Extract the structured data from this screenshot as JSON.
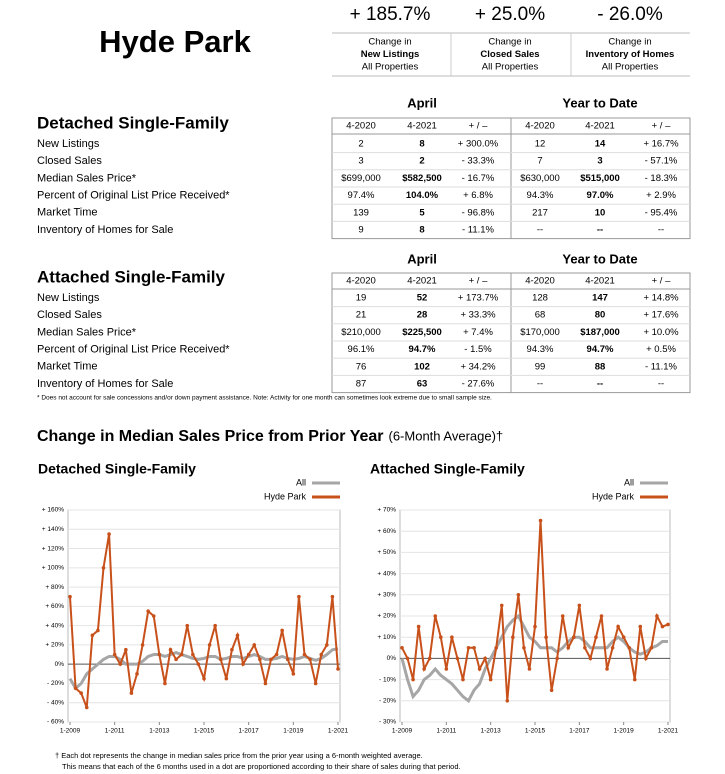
{
  "header": {
    "title": "Hyde Park",
    "stats": [
      {
        "value": "+ 185.7%",
        "lines": [
          "Change in",
          "New Listings",
          "All Properties"
        ]
      },
      {
        "value": "+ 25.0%",
        "lines": [
          "Change in",
          "Closed Sales",
          "All Properties"
        ]
      },
      {
        "value": "- 26.0%",
        "lines": [
          "Change in",
          "Inventory of Homes",
          "All Properties"
        ]
      }
    ]
  },
  "tables": [
    {
      "title": "Detached Single-Family",
      "groups": [
        "April",
        "Year to Date"
      ],
      "columns": [
        "4-2020",
        "4-2021",
        "+ / –",
        "4-2020",
        "4-2021",
        "+ / –"
      ],
      "rows": [
        {
          "label": "New Listings",
          "cells": [
            "2",
            "8",
            "+ 300.0%",
            "12",
            "14",
            "+ 16.7%"
          ]
        },
        {
          "label": "Closed Sales",
          "cells": [
            "3",
            "2",
            "- 33.3%",
            "7",
            "3",
            "- 57.1%"
          ]
        },
        {
          "label": "Median Sales Price*",
          "cells": [
            "$699,000",
            "$582,500",
            "- 16.7%",
            "$630,000",
            "$515,000",
            "- 18.3%"
          ]
        },
        {
          "label": "Percent of Original List Price Received*",
          "cells": [
            "97.4%",
            "104.0%",
            "+ 6.8%",
            "94.3%",
            "97.0%",
            "+ 2.9%"
          ]
        },
        {
          "label": "Market Time",
          "cells": [
            "139",
            "5",
            "- 96.8%",
            "217",
            "10",
            "- 95.4%"
          ]
        },
        {
          "label": "Inventory of Homes for Sale",
          "cells": [
            "9",
            "8",
            "- 11.1%",
            "--",
            "--",
            "--"
          ]
        }
      ]
    },
    {
      "title": "Attached Single-Family",
      "groups": [
        "April",
        "Year to Date"
      ],
      "columns": [
        "4-2020",
        "4-2021",
        "+ / –",
        "4-2020",
        "4-2021",
        "+ / –"
      ],
      "rows": [
        {
          "label": "New Listings",
          "cells": [
            "19",
            "52",
            "+ 173.7%",
            "128",
            "147",
            "+ 14.8%"
          ]
        },
        {
          "label": "Closed Sales",
          "cells": [
            "21",
            "28",
            "+ 33.3%",
            "68",
            "80",
            "+ 17.6%"
          ]
        },
        {
          "label": "Median Sales Price*",
          "cells": [
            "$210,000",
            "$225,500",
            "+ 7.4%",
            "$170,000",
            "$187,000",
            "+ 10.0%"
          ]
        },
        {
          "label": "Percent of Original List Price Received*",
          "cells": [
            "96.1%",
            "94.7%",
            "- 1.5%",
            "94.3%",
            "94.7%",
            "+ 0.5%"
          ]
        },
        {
          "label": "Market Time",
          "cells": [
            "76",
            "102",
            "+ 34.2%",
            "99",
            "88",
            "- 11.1%"
          ]
        },
        {
          "label": "Inventory of Homes for Sale",
          "cells": [
            "87",
            "63",
            "- 27.6%",
            "--",
            "--",
            "--"
          ]
        }
      ]
    }
  ],
  "table_note": "* Does not account for sale concessions and/or down payment assistance. Note: Activity for one month can sometimes look extreme due to small sample size.",
  "section_title": "Change in Median Sales Price from Prior Year",
  "section_subtitle": "(6-Month Average)†",
  "chart_data": [
    {
      "type": "line",
      "title": "Detached Single-Family",
      "x": [
        "1-2009",
        "4-2009",
        "7-2009",
        "10-2009",
        "1-2010",
        "4-2010",
        "7-2010",
        "10-2010",
        "1-2011",
        "4-2011",
        "7-2011",
        "10-2011",
        "1-2012",
        "4-2012",
        "7-2012",
        "10-2012",
        "1-2013",
        "4-2013",
        "7-2013",
        "10-2013",
        "1-2014",
        "4-2014",
        "7-2014",
        "10-2014",
        "1-2015",
        "4-2015",
        "7-2015",
        "10-2015",
        "1-2016",
        "4-2016",
        "7-2016",
        "10-2016",
        "1-2017",
        "4-2017",
        "7-2017",
        "10-2017",
        "1-2018",
        "4-2018",
        "7-2018",
        "10-2018",
        "1-2019",
        "4-2019",
        "7-2019",
        "10-2019",
        "1-2020",
        "4-2020",
        "7-2020",
        "10-2020",
        "1-2021"
      ],
      "xticks": [
        "1-2009",
        "1-2011",
        "1-2013",
        "1-2015",
        "1-2017",
        "1-2019",
        "1-2021"
      ],
      "ylim": [
        -60,
        160
      ],
      "yticks": [
        {
          "value": -60,
          "label": "- 60%"
        },
        {
          "value": -40,
          "label": "- 40%"
        },
        {
          "value": -20,
          "label": "- 20%"
        },
        {
          "value": 0,
          "label": "0%"
        },
        {
          "value": 20,
          "label": "+ 20%"
        },
        {
          "value": 40,
          "label": "+ 40%"
        },
        {
          "value": 60,
          "label": "+ 60%"
        },
        {
          "value": 80,
          "label": "+ 80%"
        },
        {
          "value": 100,
          "label": "+ 100%"
        },
        {
          "value": 120,
          "label": "+ 120%"
        },
        {
          "value": 140,
          "label": "+ 140%"
        },
        {
          "value": 160,
          "label": "+ 160%"
        }
      ],
      "series": [
        {
          "name": "All",
          "color": "#a6a6a6",
          "values": [
            -15,
            -25,
            -20,
            -10,
            -5,
            0,
            5,
            8,
            8,
            5,
            0,
            0,
            0,
            3,
            8,
            10,
            10,
            8,
            10,
            12,
            10,
            8,
            6,
            5,
            6,
            8,
            8,
            5,
            6,
            8,
            8,
            6,
            8,
            10,
            8,
            5,
            5,
            6,
            8,
            6,
            5,
            6,
            8,
            6,
            4,
            6,
            10,
            15,
            16
          ]
        },
        {
          "name": "Hyde Park",
          "color": "#c8511b",
          "values": [
            70,
            -25,
            -30,
            -45,
            30,
            35,
            100,
            135,
            10,
            0,
            15,
            -30,
            -10,
            20,
            55,
            50,
            10,
            -20,
            15,
            5,
            10,
            40,
            10,
            0,
            -15,
            20,
            40,
            5,
            -15,
            15,
            30,
            0,
            10,
            20,
            5,
            -20,
            5,
            10,
            35,
            5,
            -10,
            70,
            10,
            5,
            -20,
            10,
            20,
            70,
            -5
          ]
        }
      ]
    },
    {
      "type": "line",
      "title": "Attached Single-Family",
      "x": [
        "1-2009",
        "4-2009",
        "7-2009",
        "10-2009",
        "1-2010",
        "4-2010",
        "7-2010",
        "10-2010",
        "1-2011",
        "4-2011",
        "7-2011",
        "10-2011",
        "1-2012",
        "4-2012",
        "7-2012",
        "10-2012",
        "1-2013",
        "4-2013",
        "7-2013",
        "10-2013",
        "1-2014",
        "4-2014",
        "7-2014",
        "10-2014",
        "1-2015",
        "4-2015",
        "7-2015",
        "10-2015",
        "1-2016",
        "4-2016",
        "7-2016",
        "10-2016",
        "1-2017",
        "4-2017",
        "7-2017",
        "10-2017",
        "1-2018",
        "4-2018",
        "7-2018",
        "10-2018",
        "1-2019",
        "4-2019",
        "7-2019",
        "10-2019",
        "1-2020",
        "4-2020",
        "7-2020",
        "10-2020",
        "1-2021"
      ],
      "xticks": [
        "1-2009",
        "1-2011",
        "1-2013",
        "1-2015",
        "1-2017",
        "1-2019",
        "1-2021"
      ],
      "ylim": [
        -30,
        70
      ],
      "yticks": [
        {
          "value": -30,
          "label": "- 30%"
        },
        {
          "value": -20,
          "label": "- 20%"
        },
        {
          "value": -10,
          "label": "- 10%"
        },
        {
          "value": 0,
          "label": "0%"
        },
        {
          "value": 10,
          "label": "+ 10%"
        },
        {
          "value": 20,
          "label": "+ 20%"
        },
        {
          "value": 30,
          "label": "+ 30%"
        },
        {
          "value": 40,
          "label": "+ 40%"
        },
        {
          "value": 50,
          "label": "+ 50%"
        },
        {
          "value": 60,
          "label": "+ 60%"
        },
        {
          "value": 70,
          "label": "+ 70%"
        }
      ],
      "series": [
        {
          "name": "All",
          "color": "#a6a6a6",
          "values": [
            0,
            -10,
            -18,
            -15,
            -10,
            -8,
            -5,
            -8,
            -10,
            -12,
            -15,
            -18,
            -20,
            -15,
            -12,
            -5,
            0,
            5,
            10,
            15,
            18,
            20,
            15,
            10,
            8,
            5,
            5,
            5,
            3,
            5,
            8,
            10,
            10,
            8,
            5,
            5,
            5,
            5,
            8,
            10,
            8,
            5,
            3,
            2,
            3,
            5,
            6,
            8,
            8
          ]
        },
        {
          "name": "Hyde Park",
          "color": "#c8511b",
          "values": [
            5,
            0,
            -10,
            15,
            -5,
            0,
            20,
            10,
            -5,
            10,
            0,
            -10,
            5,
            5,
            -5,
            0,
            -10,
            5,
            25,
            -20,
            10,
            30,
            5,
            -5,
            15,
            65,
            10,
            -15,
            0,
            20,
            5,
            10,
            25,
            5,
            0,
            10,
            20,
            -5,
            5,
            15,
            10,
            5,
            -10,
            15,
            0,
            5,
            20,
            15,
            16
          ]
        }
      ]
    }
  ],
  "footnotes": [
    "† Each dot represents the change in median sales price from the prior year using a 6-month weighted average.",
    "This means that each of the 6 months used in a dot are proportioned according to their share of sales during that period."
  ]
}
